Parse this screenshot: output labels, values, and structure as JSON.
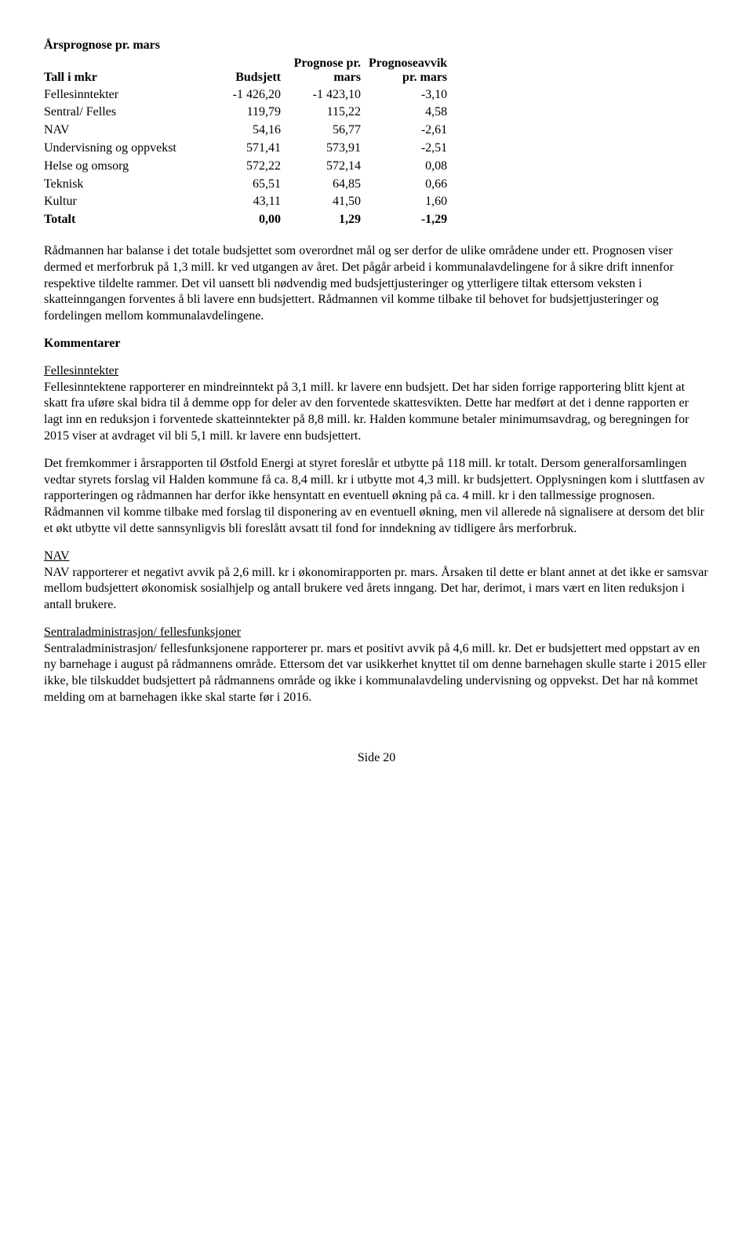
{
  "tableTitle": "Årsprognose pr. mars",
  "table": {
    "headers": {
      "col0_line1": "",
      "col0_line2": "Tall i mkr",
      "col1_line1": "",
      "col1_line2": "Budsjett",
      "col2_line1": "Prognose pr.",
      "col2_line2": "mars",
      "col3_line1": "Prognoseavvik",
      "col3_line2": "pr. mars"
    },
    "rows": [
      {
        "label": "Fellesinntekter",
        "c1": "-1 426,20",
        "c2": "-1 423,10",
        "c3": "-3,10"
      },
      {
        "label": "Sentral/ Felles",
        "c1": "119,79",
        "c2": "115,22",
        "c3": "4,58"
      },
      {
        "label": "NAV",
        "c1": "54,16",
        "c2": "56,77",
        "c3": "-2,61"
      },
      {
        "label": "Undervisning og oppvekst",
        "c1": "571,41",
        "c2": "573,91",
        "c3": "-2,51"
      },
      {
        "label": "Helse og omsorg",
        "c1": "572,22",
        "c2": "572,14",
        "c3": "0,08"
      },
      {
        "label": "Teknisk",
        "c1": "65,51",
        "c2": "64,85",
        "c3": "0,66"
      },
      {
        "label": "Kultur",
        "c1": "43,11",
        "c2": "41,50",
        "c3": "1,60"
      }
    ],
    "total": {
      "label": "Totalt",
      "c1": "0,00",
      "c2": "1,29",
      "c3": "-1,29"
    }
  },
  "para1": "Rådmannen har balanse i det totale budsjettet som overordnet mål og ser derfor de ulike områdene under ett. Prognosen viser dermed et merforbruk på 1,3 mill. kr ved utgangen av året. Det pågår arbeid i kommunalavdelingene for å sikre drift innenfor respektive tildelte rammer. Det vil uansett bli nødvendig med budsjettjusteringer og ytterligere tiltak ettersom veksten i skatteinngangen forventes å bli lavere enn budsjettert. Rådmannen vil komme tilbake til behovet for budsjettjusteringer og fordelingen mellom kommunalavdelingene.",
  "kommentarerHeading": "Kommentarer",
  "sections": {
    "felles": {
      "title": "Fellesinntekter",
      "p1": "Fellesinntektene rapporterer en mindreinntekt på 3,1 mill. kr lavere enn budsjett. Det har siden forrige rapportering blitt kjent at skatt fra uføre skal bidra til å demme opp for deler av den forventede skattesvikten. Dette har medført at det i denne rapporten er lagt inn en reduksjon i forventede skatteinntekter på 8,8 mill. kr. Halden kommune betaler minimumsavdrag, og beregningen for 2015 viser at avdraget vil bli 5,1 mill. kr lavere enn budsjettert.",
      "p2": "Det fremkommer i årsrapporten til Østfold Energi at styret foreslår et utbytte på 118 mill. kr totalt. Dersom generalforsamlingen vedtar styrets forslag vil Halden kommune få ca. 8,4 mill. kr i utbytte mot 4,3 mill. kr budsjettert. Opplysningen kom i sluttfasen av rapporteringen og rådmannen har derfor ikke hensyntatt en eventuell økning på ca. 4 mill. kr i den tallmessige prognosen. Rådmannen vil komme tilbake med forslag til disponering av en eventuell økning, men vil allerede nå signalisere at dersom det blir et økt utbytte vil dette sannsynligvis bli foreslått avsatt til fond for inndekning av tidligere års merforbruk."
    },
    "nav": {
      "title": "NAV",
      "p1": "NAV rapporterer et negativt avvik på 2,6 mill. kr i økonomirapporten pr. mars. Årsaken til dette er blant annet at det ikke er samsvar mellom budsjettert økonomisk sosialhjelp og antall brukere ved årets inngang. Det har, derimot, i mars vært en liten reduksjon i antall brukere."
    },
    "sentral": {
      "title": "Sentraladministrasjon/ fellesfunksjoner",
      "p1": "Sentraladministrasjon/ fellesfunksjonene rapporterer pr. mars et positivt avvik på 4,6 mill. kr. Det er budsjettert med oppstart av en ny barnehage i august på rådmannens område. Ettersom det var usikkerhet knyttet til om denne barnehagen skulle starte i 2015 eller ikke, ble tilskuddet budsjettert på rådmannens område og ikke i kommunalavdeling undervisning og oppvekst. Det har nå kommet melding om at barnehagen ikke skal starte før i 2016."
    }
  },
  "footer": "Side 20"
}
